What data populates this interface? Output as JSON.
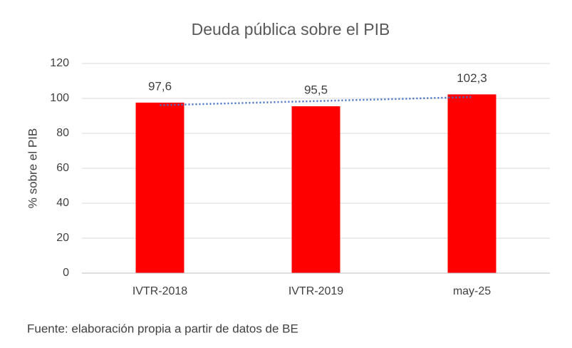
{
  "chart_data": {
    "type": "bar",
    "title": "Deuda pública sobre el PIB",
    "y_label": "% sobre el PIB",
    "source": "Fuente: elaboración propia a partir de datos de BE",
    "categories": [
      "IVTR-2018",
      "IVTR-2019",
      "may-25"
    ],
    "values": [
      97.6,
      95.5,
      102.3
    ],
    "value_labels": [
      "97,6",
      "95,5",
      "102,3"
    ],
    "color": "#ff0000",
    "ylim": [
      0,
      120
    ],
    "yticks": [
      0,
      20,
      40,
      60,
      80,
      100,
      120
    ],
    "grid": true,
    "trendline": {
      "type": "linear",
      "color": "#4472c4",
      "style": "dotted"
    }
  }
}
